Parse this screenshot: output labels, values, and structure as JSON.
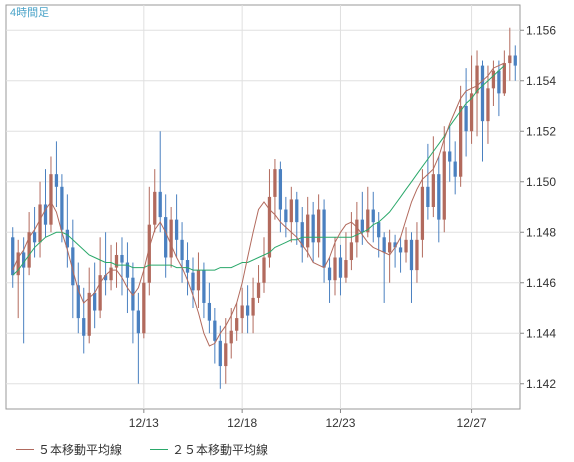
{
  "chart_data": {
    "type": "candlestick",
    "timeframe_label": "4時間足",
    "x_tick_labels": [
      "12/13",
      "12/18",
      "12/23",
      "12/27"
    ],
    "y_tick_labels": [
      "1.142",
      "1.144",
      "1.146",
      "1.148",
      "1.150",
      "1.152",
      "1.154",
      "1.156"
    ],
    "ylim": [
      1.141,
      1.157
    ],
    "grid": true,
    "colors": {
      "up": "#b26a5d",
      "down": "#4a80c0",
      "ma5": "#b26a5d",
      "ma25": "#2aa86a",
      "grid": "#e0e0e0",
      "axis": "#888888",
      "timeframe": "#4aa3c8"
    },
    "legend": [
      {
        "name": "５本移動平均線",
        "color": "#b26a5d"
      },
      {
        "name": "２５本移動平均線",
        "color": "#2aa86a"
      }
    ],
    "candles": [
      [
        1.1478,
        1.1463,
        1.1482,
        1.1458
      ],
      [
        1.1463,
        1.1472,
        1.1477,
        1.1446
      ],
      [
        1.1472,
        1.1466,
        1.1478,
        1.1436
      ],
      [
        1.1466,
        1.148,
        1.1488,
        1.1463
      ],
      [
        1.148,
        1.1476,
        1.149,
        1.147
      ],
      [
        1.1476,
        1.1491,
        1.15,
        1.147
      ],
      [
        1.1491,
        1.1483,
        1.1505,
        1.1478
      ],
      [
        1.1483,
        1.1503,
        1.151,
        1.148
      ],
      [
        1.1503,
        1.1498,
        1.1516,
        1.149
      ],
      [
        1.1498,
        1.1481,
        1.1503,
        1.1476
      ],
      [
        1.1481,
        1.1474,
        1.1495,
        1.1466
      ],
      [
        1.1474,
        1.1459,
        1.1485,
        1.1446
      ],
      [
        1.1459,
        1.1446,
        1.1468,
        1.144
      ],
      [
        1.1446,
        1.1439,
        1.1458,
        1.1432
      ],
      [
        1.1439,
        1.1456,
        1.1466,
        1.1436
      ],
      [
        1.1456,
        1.1449,
        1.1468,
        1.1442
      ],
      [
        1.1449,
        1.1463,
        1.1478,
        1.1446
      ],
      [
        1.1463,
        1.1461,
        1.148,
        1.1455
      ],
      [
        1.1461,
        1.1466,
        1.1475,
        1.1457
      ],
      [
        1.1466,
        1.1471,
        1.1476,
        1.1458
      ],
      [
        1.1471,
        1.1468,
        1.1478,
        1.1455
      ],
      [
        1.1468,
        1.1462,
        1.1476,
        1.1448
      ],
      [
        1.1462,
        1.1449,
        1.1468,
        1.1436
      ],
      [
        1.1449,
        1.144,
        1.1456,
        1.142
      ],
      [
        1.144,
        1.146,
        1.1466,
        1.1438
      ],
      [
        1.146,
        1.1483,
        1.1498,
        1.1455
      ],
      [
        1.1483,
        1.1496,
        1.1505,
        1.148
      ],
      [
        1.1496,
        1.1486,
        1.152,
        1.148
      ],
      [
        1.1486,
        1.147,
        1.1495,
        1.1462
      ],
      [
        1.147,
        1.1485,
        1.149,
        1.1466
      ],
      [
        1.1485,
        1.1477,
        1.1495,
        1.147
      ],
      [
        1.1477,
        1.1469,
        1.1484,
        1.146
      ],
      [
        1.1469,
        1.1464,
        1.1476,
        1.1455
      ],
      [
        1.1464,
        1.1457,
        1.147,
        1.145
      ],
      [
        1.1457,
        1.1465,
        1.1472,
        1.145
      ],
      [
        1.1465,
        1.1452,
        1.1468,
        1.1446
      ],
      [
        1.1452,
        1.1445,
        1.146,
        1.144
      ],
      [
        1.1445,
        1.1437,
        1.145,
        1.1428
      ],
      [
        1.1437,
        1.1427,
        1.1443,
        1.1418
      ],
      [
        1.1427,
        1.1436,
        1.1446,
        1.142
      ],
      [
        1.1436,
        1.1441,
        1.145,
        1.143
      ],
      [
        1.1441,
        1.1446,
        1.1452,
        1.1437
      ],
      [
        1.1446,
        1.1451,
        1.1458,
        1.144
      ],
      [
        1.1451,
        1.1447,
        1.1459,
        1.144
      ],
      [
        1.1447,
        1.1454,
        1.1462,
        1.144
      ],
      [
        1.1454,
        1.146,
        1.1467,
        1.1452
      ],
      [
        1.146,
        1.147,
        1.1478,
        1.1456
      ],
      [
        1.147,
        1.1494,
        1.1505,
        1.1466
      ],
      [
        1.1494,
        1.1505,
        1.1509,
        1.1485
      ],
      [
        1.1505,
        1.1489,
        1.1508,
        1.148
      ],
      [
        1.1489,
        1.1484,
        1.1494,
        1.1478
      ],
      [
        1.1484,
        1.1493,
        1.1498,
        1.1476
      ],
      [
        1.1493,
        1.1484,
        1.1496,
        1.1475
      ],
      [
        1.1484,
        1.1474,
        1.149,
        1.1468
      ],
      [
        1.1474,
        1.1487,
        1.1494,
        1.147
      ],
      [
        1.1487,
        1.1476,
        1.1492,
        1.1468
      ],
      [
        1.1476,
        1.1489,
        1.1495,
        1.147
      ],
      [
        1.1489,
        1.1466,
        1.1493,
        1.146
      ],
      [
        1.1466,
        1.1461,
        1.147,
        1.1452
      ],
      [
        1.1461,
        1.147,
        1.1478,
        1.1455
      ],
      [
        1.147,
        1.1462,
        1.1475,
        1.1455
      ],
      [
        1.1462,
        1.1469,
        1.148,
        1.146
      ],
      [
        1.1469,
        1.1476,
        1.1488,
        1.1465
      ],
      [
        1.1476,
        1.1485,
        1.1492,
        1.147
      ],
      [
        1.1485,
        1.148,
        1.1496,
        1.1475
      ],
      [
        1.148,
        1.1489,
        1.1498,
        1.1478
      ],
      [
        1.1489,
        1.1484,
        1.1496,
        1.1476
      ],
      [
        1.1484,
        1.1478,
        1.1488,
        1.147
      ],
      [
        1.1478,
        1.1472,
        1.148,
        1.1452
      ],
      [
        1.1472,
        1.1476,
        1.1481,
        1.146
      ],
      [
        1.1476,
        1.1474,
        1.1479,
        1.1466
      ],
      [
        1.1474,
        1.1472,
        1.1478,
        1.1464
      ],
      [
        1.1472,
        1.1477,
        1.1482,
        1.1468
      ],
      [
        1.1477,
        1.1465,
        1.148,
        1.1452
      ],
      [
        1.1465,
        1.1477,
        1.1484,
        1.146
      ],
      [
        1.1477,
        1.1498,
        1.1505,
        1.147
      ],
      [
        1.1498,
        1.149,
        1.1515,
        1.1485
      ],
      [
        1.149,
        1.1503,
        1.1518,
        1.1486
      ],
      [
        1.1503,
        1.1485,
        1.151,
        1.1476
      ],
      [
        1.1485,
        1.1512,
        1.1522,
        1.148
      ],
      [
        1.1512,
        1.1508,
        1.1522,
        1.15
      ],
      [
        1.1508,
        1.1502,
        1.1516,
        1.1495
      ],
      [
        1.1502,
        1.153,
        1.1538,
        1.1498
      ],
      [
        1.153,
        1.152,
        1.1545,
        1.151
      ],
      [
        1.152,
        1.1535,
        1.155,
        1.1515
      ],
      [
        1.1535,
        1.1546,
        1.1552,
        1.1518
      ],
      [
        1.1546,
        1.1524,
        1.1548,
        1.1508
      ],
      [
        1.1524,
        1.1537,
        1.1546,
        1.1515
      ],
      [
        1.1537,
        1.1544,
        1.1548,
        1.153
      ],
      [
        1.1544,
        1.1535,
        1.1548,
        1.1526
      ],
      [
        1.1535,
        1.1547,
        1.1552,
        1.1534
      ],
      [
        1.1547,
        1.155,
        1.1561,
        1.154
      ],
      [
        1.155,
        1.1546,
        1.1554,
        1.154
      ]
    ],
    "ma5": [
      1.1465,
      1.147,
      1.1473,
      1.1478,
      1.1481,
      1.1485,
      1.1489,
      1.1492,
      1.1488,
      1.148,
      1.1473,
      1.1465,
      1.1457,
      1.1452,
      1.1454,
      1.1456,
      1.146,
      1.1463,
      1.1465,
      1.1465,
      1.1462,
      1.1458,
      1.1455,
      1.1458,
      1.1465,
      1.1474,
      1.1481,
      1.1484,
      1.148,
      1.1475,
      1.147,
      1.1466,
      1.1461,
      1.1455,
      1.1448,
      1.144,
      1.1435,
      1.1436,
      1.144,
      1.1443,
      1.1447,
      1.1452,
      1.146,
      1.147,
      1.148,
      1.1489,
      1.1492,
      1.1489,
      1.1487,
      1.1484,
      1.1482,
      1.148,
      1.1478,
      1.1475,
      1.1472,
      1.1468,
      1.1467,
      1.1466,
      1.147,
      1.1476,
      1.148,
      1.1483,
      1.1484,
      1.1482,
      1.1479,
      1.1476,
      1.1474,
      1.1473,
      1.1472,
      1.1471,
      1.1474,
      1.1478,
      1.1485,
      1.1492,
      1.1497,
      1.1501,
      1.1503,
      1.1505,
      1.151,
      1.1517,
      1.1523,
      1.1528,
      1.1533,
      1.1536,
      1.1537,
      1.1538,
      1.154,
      1.1542,
      1.1545,
      1.1546,
      1.1547
    ],
    "ma25": [
      1.1463,
      1.1465,
      1.1468,
      1.1471,
      1.1474,
      1.1476,
      1.1478,
      1.1479,
      1.148,
      1.148,
      1.1479,
      1.1477,
      1.1475,
      1.1473,
      1.1471,
      1.147,
      1.1469,
      1.1468,
      1.1468,
      1.1467,
      1.1467,
      1.1467,
      1.1466,
      1.1466,
      1.1466,
      1.1467,
      1.1467,
      1.1467,
      1.1467,
      1.1467,
      1.1466,
      1.1466,
      1.1466,
      1.1465,
      1.1465,
      1.1465,
      1.1465,
      1.1465,
      1.1466,
      1.1466,
      1.1466,
      1.1467,
      1.1468,
      1.1468,
      1.1469,
      1.147,
      1.1471,
      1.1472,
      1.1474,
      1.1475,
      1.1476,
      1.1477,
      1.1477,
      1.1478,
      1.1478,
      1.1478,
      1.1478,
      1.1478,
      1.1478,
      1.1478,
      1.1478,
      1.1478,
      1.1478,
      1.1479,
      1.148,
      1.1481,
      1.1483,
      1.1484,
      1.1486,
      1.1488,
      1.1491,
      1.1494,
      1.1497,
      1.15,
      1.1503,
      1.1506,
      1.1509,
      1.1512,
      1.1515,
      1.1518,
      1.1522,
      1.1525,
      1.1528,
      1.1531,
      1.1533,
      1.1536,
      1.1538,
      1.154,
      1.1542,
      1.1544,
      1.1546
    ]
  }
}
